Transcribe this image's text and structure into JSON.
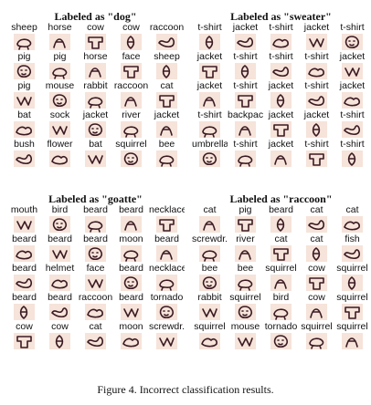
{
  "panels": [
    {
      "title": "Labeled as \"dog\"",
      "rows": [
        [
          "sheep",
          "horse",
          "cow",
          "cow",
          "raccoon"
        ],
        [
          "pig",
          "pig",
          "horse",
          "face",
          "sheep"
        ],
        [
          "pig",
          "mouse",
          "rabbit",
          "raccoon",
          "cat"
        ],
        [
          "bat",
          "sock",
          "jacket",
          "river",
          "jacket"
        ],
        [
          "bush",
          "flower",
          "bat",
          "squirrel",
          "bee"
        ]
      ]
    },
    {
      "title": "Labeled as \"sweater\"",
      "rows": [
        [
          "t-shirt",
          "jacket",
          "t-shirt",
          "jacket",
          "t-shirt"
        ],
        [
          "jacket",
          "t-shirt",
          "t-shirt",
          "t-shirt",
          "jacket"
        ],
        [
          "jacket",
          "t-shirt",
          "jacket",
          "t-shirt",
          "jacket"
        ],
        [
          "t-shirt",
          "backpack",
          "jacket",
          "jacket",
          "t-shirt"
        ],
        [
          "umbrella",
          "t-shirt",
          "jacket",
          "t-shirt",
          "t-shirt"
        ]
      ]
    },
    {
      "title": "Labeled as \"goatte\"",
      "rows": [
        [
          "mouth",
          "bird",
          "beard",
          "beard",
          "necklace"
        ],
        [
          "beard",
          "beard",
          "beard",
          "moon",
          "beard"
        ],
        [
          "beard",
          "helmet",
          "face",
          "beard",
          "necklace"
        ],
        [
          "beard",
          "beard",
          "raccoon",
          "beard",
          "tornado"
        ],
        [
          "cow",
          "cow",
          "cat",
          "moon",
          "screwdr.."
        ]
      ]
    },
    {
      "title": "Labeled as \"raccoon\"",
      "rows": [
        [
          "cat",
          "pig",
          "beard",
          "cat",
          "cat"
        ],
        [
          "screwdr..",
          "river",
          "cat",
          "cat",
          "fish"
        ],
        [
          "bee",
          "bee",
          "squirrel",
          "cow",
          "squirrel"
        ],
        [
          "rabbit",
          "squirrel",
          "bird",
          "cow",
          "squirrel"
        ],
        [
          "squirrel",
          "mouse",
          "tornado",
          "squirrel",
          "squirrel"
        ]
      ]
    }
  ],
  "caption": "Figure 4. Incorrect classification results."
}
